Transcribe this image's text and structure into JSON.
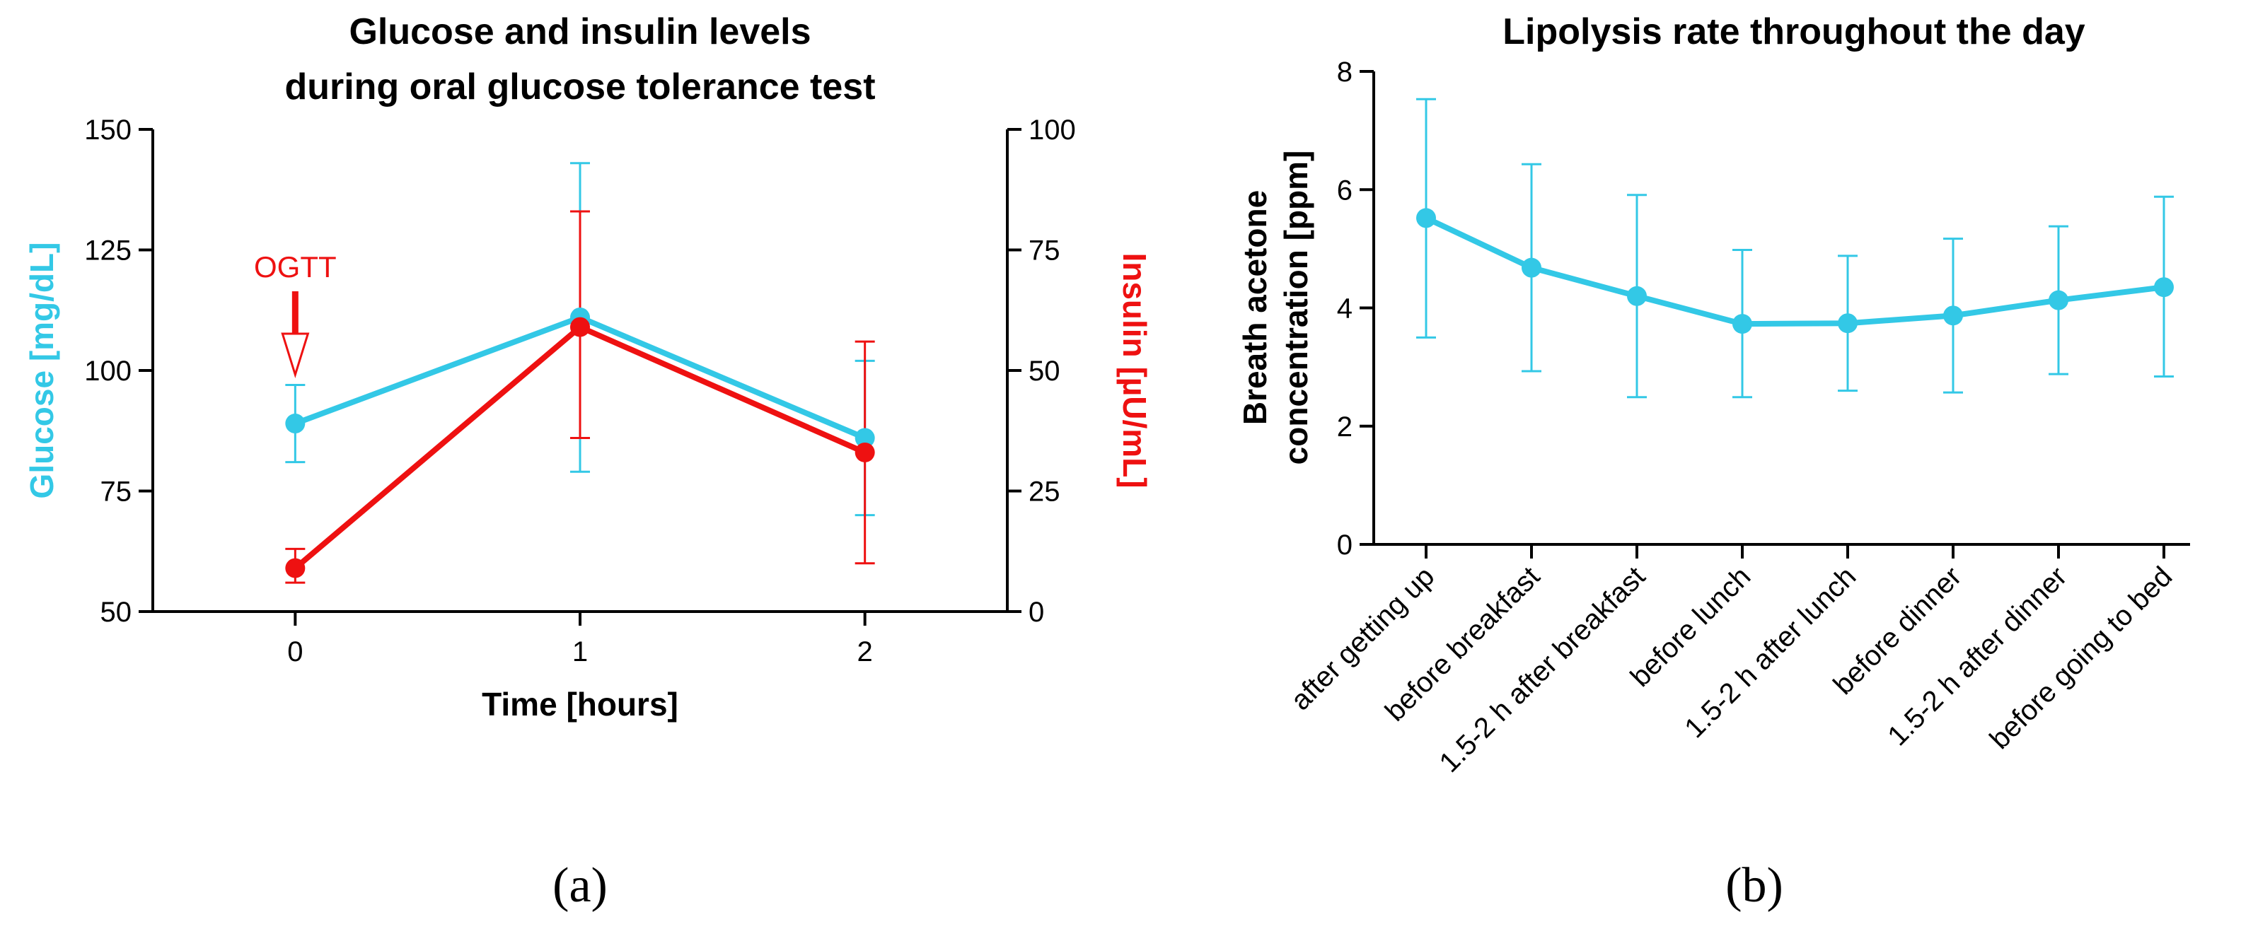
{
  "chart_data": [
    {
      "panel": "a",
      "type": "line",
      "title": [
        "Glucose and insulin levels",
        "during oral glucose tolerance test"
      ],
      "xlabel": "Time [hours]",
      "ylabel_left": "Glucose [mg/dL]",
      "ylabel_right": "Insulin [µU/mL]",
      "x": [
        0,
        1,
        2
      ],
      "xlim": [
        -0.5,
        2.5
      ],
      "x_ticks": [
        "0",
        "1",
        "2"
      ],
      "ylim_left": [
        50,
        150
      ],
      "y_ticks_left": [
        "50",
        "75",
        "100",
        "125",
        "150"
      ],
      "ylim_right": [
        0,
        100
      ],
      "y_ticks_right": [
        "0",
        "25",
        "50",
        "75",
        "100"
      ],
      "series": [
        {
          "name": "Glucose",
          "axis": "left",
          "color": "#33c8e6",
          "values": [
            89,
            111,
            86
          ],
          "err_low": [
            81,
            79,
            70
          ],
          "err_high": [
            97,
            143,
            102
          ]
        },
        {
          "name": "Insulin",
          "axis": "right",
          "color": "#ee1111",
          "values": [
            9,
            59,
            33
          ],
          "err_low": [
            6,
            36,
            10
          ],
          "err_high": [
            13,
            83,
            56
          ]
        }
      ],
      "annotation": {
        "text": "OGTT",
        "x": 0,
        "color": "#ee1111"
      },
      "grid": false
    },
    {
      "panel": "b",
      "type": "line",
      "title": "Lipolysis rate throughout the day",
      "ylabel": [
        "Breath acetone",
        "concentration [ppm]"
      ],
      "categories": [
        "after getting up",
        "before breakfast",
        "1.5-2 h after breakfast",
        "before lunch",
        "1.5-2 h after lunch",
        "before dinner",
        "1.5-2 h after dinner",
        "before going to bed"
      ],
      "ylim": [
        0,
        8
      ],
      "y_ticks": [
        "0",
        "2",
        "4",
        "6",
        "8"
      ],
      "series": [
        {
          "name": "Breath acetone",
          "color": "#33c8e6",
          "values": [
            5.52,
            4.68,
            4.2,
            3.73,
            3.74,
            3.87,
            4.13,
            4.35
          ],
          "err_low": [
            3.5,
            2.93,
            2.49,
            2.49,
            2.6,
            2.57,
            2.88,
            2.84
          ],
          "err_high": [
            7.53,
            6.43,
            5.91,
            4.98,
            4.88,
            5.17,
            5.38,
            5.88
          ]
        }
      ],
      "grid": false
    }
  ],
  "labels": {
    "a": "(a)",
    "b": "(b)"
  }
}
